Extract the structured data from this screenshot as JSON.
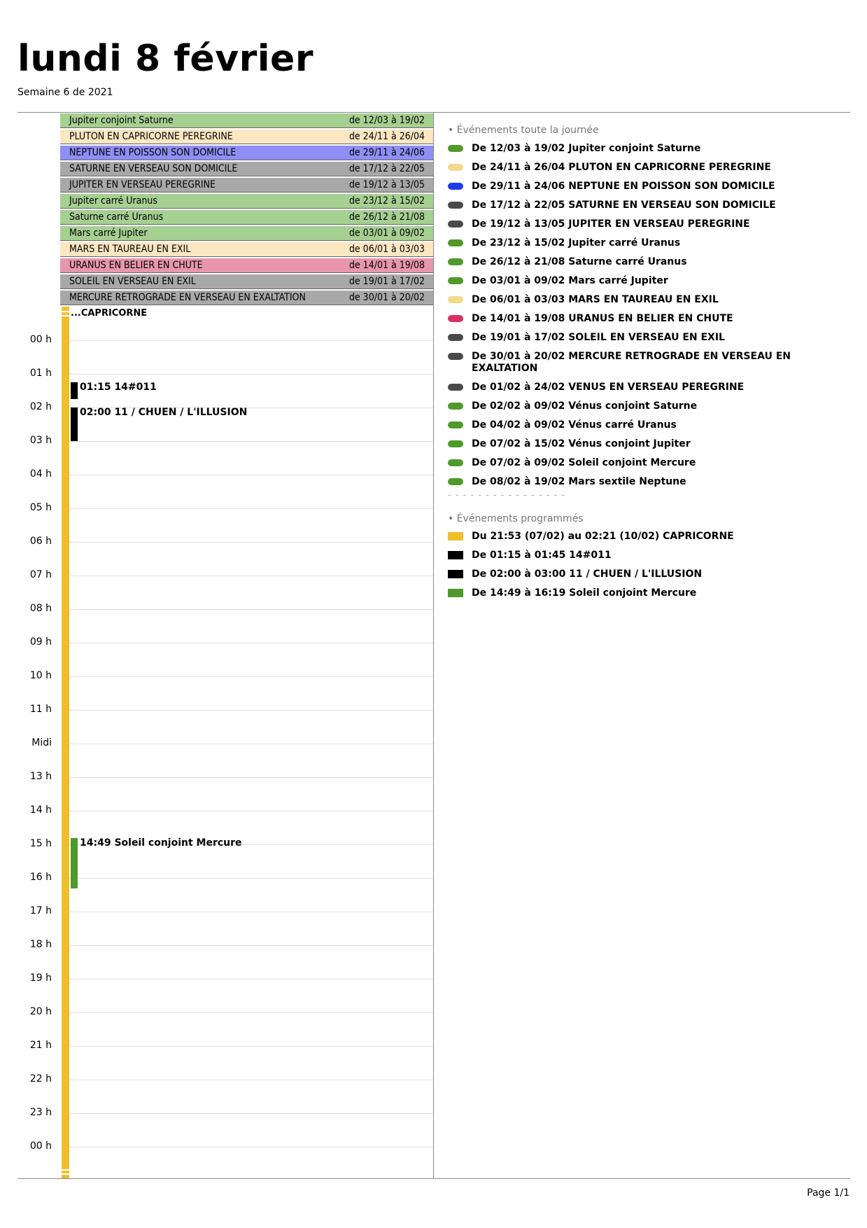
{
  "header": {
    "title": "lundi 8 février",
    "subtitle": "Semaine 6 de 2021"
  },
  "colors": {
    "green_bar": "#a6cf92",
    "cream_bar": "#fbe7c2",
    "blue_bar": "#8e8ef5",
    "grey_bar": "#a8a8a8",
    "pink_bar": "#e796ae",
    "green": "#4f9a2a",
    "cream": "#f3d98a",
    "blue": "#1f3be8",
    "dark": "#4a4a4a",
    "red": "#d93060",
    "yellow": "#eebf2d",
    "black": "#000000"
  },
  "allday_bars": [
    {
      "name": "Jupiter conjoint Saturne",
      "dates": "de 12/03 à 19/02",
      "color": "green_bar"
    },
    {
      "name": "PLUTON EN CAPRICORNE PEREGRINE",
      "dates": "de 24/11 à 26/04",
      "color": "cream_bar"
    },
    {
      "name": "NEPTUNE EN POISSON SON DOMICILE",
      "dates": "de 29/11 à 24/06",
      "color": "blue_bar"
    },
    {
      "name": "SATURNE EN VERSEAU SON DOMICILE",
      "dates": "de 17/12 à 22/05",
      "color": "grey_bar"
    },
    {
      "name": "JUPITER EN VERSEAU PEREGRINE",
      "dates": "de 19/12 à 13/05",
      "color": "grey_bar"
    },
    {
      "name": "Jupiter carré Uranus",
      "dates": "de 23/12 à 15/02",
      "color": "green_bar"
    },
    {
      "name": "Saturne carré Uranus",
      "dates": "de 26/12 à 21/08",
      "color": "green_bar"
    },
    {
      "name": "Mars carré Jupiter",
      "dates": "de 03/01 à 09/02",
      "color": "green_bar"
    },
    {
      "name": "MARS EN TAUREAU EN EXIL",
      "dates": "de 06/01 à 03/03",
      "color": "cream_bar"
    },
    {
      "name": "URANUS EN BELIER EN CHUTE",
      "dates": "de 14/01 à 19/08",
      "color": "pink_bar"
    },
    {
      "name": "SOLEIL EN VERSEAU EN EXIL",
      "dates": "de 19/01 à 17/02",
      "color": "grey_bar"
    },
    {
      "name": "MERCURE RETROGRADE EN VERSEAU EN EXALTATION",
      "dates": "de 30/01 à 20/02",
      "color": "grey_bar"
    }
  ],
  "continuing_label": "...CAPRICORNE",
  "hours": [
    "00 h",
    "01 h",
    "02 h",
    "03 h",
    "04 h",
    "05 h",
    "06 h",
    "07 h",
    "08 h",
    "09 h",
    "10 h",
    "11 h",
    "Midi",
    "13 h",
    "14 h",
    "15 h",
    "16 h",
    "17 h",
    "18 h",
    "19 h",
    "20 h",
    "21 h",
    "22 h",
    "23 h",
    "00 h"
  ],
  "timed_events": [
    {
      "label": "01:15 14#011",
      "start_hour": 1.25,
      "end_hour": 1.75,
      "color": "black"
    },
    {
      "label": "02:00 11 / CHUEN / L'ILLUSION",
      "start_hour": 2.0,
      "end_hour": 3.0,
      "color": "black"
    },
    {
      "label": "14:49 Soleil conjoint Mercure",
      "start_hour": 14.8167,
      "end_hour": 16.3167,
      "color": "green"
    }
  ],
  "legend": {
    "allday_header": "• Événements toute la journée",
    "allday_items": [
      {
        "text": "De 12/03 à 19/02 Jupiter conjoint Saturne",
        "color": "green"
      },
      {
        "text": "De 24/11 à 26/04 PLUTON EN CAPRICORNE PEREGRINE",
        "color": "cream"
      },
      {
        "text": "De 29/11 à 24/06 NEPTUNE EN POISSON SON DOMICILE",
        "color": "blue"
      },
      {
        "text": "De 17/12 à 22/05 SATURNE EN VERSEAU SON DOMICILE",
        "color": "dark"
      },
      {
        "text": "De 19/12 à 13/05 JUPITER EN VERSEAU PEREGRINE",
        "color": "dark"
      },
      {
        "text": "De 23/12 à 15/02 Jupiter carré Uranus",
        "color": "green"
      },
      {
        "text": "De 26/12 à 21/08 Saturne carré Uranus",
        "color": "green"
      },
      {
        "text": "De 03/01 à 09/02 Mars carré Jupiter",
        "color": "green"
      },
      {
        "text": "De 06/01 à 03/03 MARS EN TAUREAU EN EXIL",
        "color": "cream"
      },
      {
        "text": "De 14/01 à 19/08 URANUS EN BELIER EN CHUTE",
        "color": "red"
      },
      {
        "text": "De 19/01 à 17/02 SOLEIL EN VERSEAU EN EXIL",
        "color": "dark"
      },
      {
        "text": "De 30/01 à 20/02 MERCURE RETROGRADE EN VERSEAU EN EXALTATION",
        "color": "dark"
      },
      {
        "text": "De 01/02 à 24/02 VENUS EN VERSEAU PEREGRINE",
        "color": "dark"
      },
      {
        "text": "De 02/02 à 09/02 Vénus conjoint Saturne",
        "color": "green"
      },
      {
        "text": "De 04/02 à 09/02 Vénus carré Uranus",
        "color": "green"
      },
      {
        "text": "De 07/02 à 15/02 Vénus conjoint Jupiter",
        "color": "green"
      },
      {
        "text": "De 07/02 à 09/02 Soleil conjoint Mercure",
        "color": "green"
      },
      {
        "text": "De 08/02 à 19/02 Mars sextile Neptune",
        "color": "green"
      }
    ],
    "separator": "- - - - - - - - - - - - - - - -",
    "scheduled_header": "• Événements programmés",
    "scheduled_items": [
      {
        "text": "Du 21:53 (07/02) au 02:21 (10/02) CAPRICORNE",
        "color": "yellow"
      },
      {
        "text": "De 01:15 à 01:45 14#011",
        "color": "black"
      },
      {
        "text": "De 02:00 à 03:00 11 / CHUEN / L'ILLUSION",
        "color": "black"
      },
      {
        "text": "De 14:49 à 16:19 Soleil conjoint Mercure",
        "color": "green"
      }
    ]
  },
  "footer": {
    "page": "Page 1/1"
  }
}
